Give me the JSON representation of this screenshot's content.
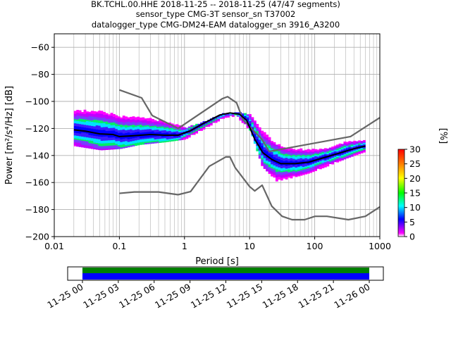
{
  "title": {
    "line1": "BK.TCHL.00.HHE   2018-11-25 -- 2018-11-25  (47/47 segments)",
    "line2": "sensor_type CMG-3T sensor_sn T37002",
    "line3": "datalogger_type CMG-DM24-EAM datalogger_sn 3916_A3200"
  },
  "chart_data": [
    {
      "type": "heatmap",
      "title": "BK.TCHL.00.HHE   2018-11-25 -- 2018-11-25  (47/47 segments)",
      "xlabel": "Period [s]",
      "ylabel": "Power [m²/s⁴/Hz] [dB]",
      "x_scale": "log",
      "xlim": [
        0.01,
        1000
      ],
      "ylim": [
        -200,
        -50
      ],
      "x_ticks": [
        "0.01",
        "0.1",
        "1",
        "10",
        "100",
        "1000"
      ],
      "y_ticks": [
        "−200",
        "−180",
        "−160",
        "−140",
        "−120",
        "−100",
        "−80",
        "−60"
      ],
      "grid": true,
      "colorbar": {
        "label": "[%]",
        "min": 0,
        "max": 30,
        "ticks": [
          "0",
          "5",
          "10",
          "15",
          "20",
          "25",
          "30"
        ],
        "colormap": "pqlx"
      },
      "series": [
        {
          "name": "",
          "style": "model-high",
          "color": "#666666",
          "points": [
            [
              0.1,
              -91.5
            ],
            [
              0.22,
              -97.4
            ],
            [
              0.32,
              -110.5
            ],
            [
              0.8,
              -120
            ],
            [
              3.8,
              -98
            ],
            [
              4.6,
              -96.5
            ],
            [
              6.3,
              -101
            ],
            [
              7.9,
              -113.5
            ],
            [
              15.4,
              -128
            ],
            [
              20,
              -137
            ],
            [
              354.8,
              -126
            ],
            [
              1000,
              -112
            ]
          ]
        },
        {
          "name": "",
          "style": "model-low",
          "color": "#666666",
          "points": [
            [
              0.1,
              -168
            ],
            [
              0.17,
              -167
            ],
            [
              0.4,
              -167
            ],
            [
              0.8,
              -169
            ],
            [
              1.24,
              -166.7
            ],
            [
              2.4,
              -148
            ],
            [
              4.3,
              -141.1
            ],
            [
              5,
              -141.1
            ],
            [
              6,
              -149
            ],
            [
              10,
              -163
            ],
            [
              12,
              -166.2
            ],
            [
              15.6,
              -162
            ],
            [
              21.9,
              -177.5
            ],
            [
              31.6,
              -185
            ],
            [
              45,
              -187.5
            ],
            [
              70,
              -187.5
            ],
            [
              101,
              -185
            ],
            [
              154,
              -185
            ],
            [
              328.9,
              -187.5
            ],
            [
              600,
              -185
            ],
            [
              1000,
              -178
            ]
          ]
        },
        {
          "name": "",
          "style": "mean",
          "color": "#000000",
          "points": [
            [
              0.02,
              -121
            ],
            [
              0.03,
              -122
            ],
            [
              0.05,
              -124
            ],
            [
              0.08,
              -124.5
            ],
            [
              0.1,
              -126
            ],
            [
              0.15,
              -125.5
            ],
            [
              0.3,
              -124.5
            ],
            [
              0.5,
              -125
            ],
            [
              0.8,
              -125
            ],
            [
              1.2,
              -122
            ],
            [
              2,
              -116
            ],
            [
              3.5,
              -110
            ],
            [
              5,
              -108.5
            ],
            [
              7,
              -109.5
            ],
            [
              9,
              -114
            ],
            [
              12,
              -128
            ],
            [
              16,
              -138
            ],
            [
              22,
              -143
            ],
            [
              30,
              -146
            ],
            [
              50,
              -146
            ],
            [
              80,
              -145
            ],
            [
              130,
              -142
            ],
            [
              250,
              -138
            ],
            [
              400,
              -135
            ],
            [
              600,
              -133
            ]
          ]
        }
      ],
      "spread_envelope": {
        "period": [
          0.02,
          0.05,
          0.1,
          0.2,
          0.5,
          1,
          2,
          4,
          6,
          10,
          15,
          25,
          40,
          80,
          150,
          300,
          600
        ],
        "upper_db": [
          -107,
          -107,
          -111,
          -112,
          -115,
          -120,
          -115,
          -109,
          -108,
          -110,
          -122,
          -132,
          -135,
          -136,
          -135,
          -130,
          -129
        ],
        "lower_db": [
          -133,
          -136,
          -135,
          -132,
          -130,
          -128,
          -120,
          -112,
          -111,
          -122,
          -148,
          -159,
          -157,
          -153,
          -148,
          -142,
          -137
        ]
      }
    },
    {
      "type": "bar",
      "name": "data coverage",
      "x_ticks": [
        "11-25 00",
        "11-25 03",
        "11-25 06",
        "11-25 09",
        "11-25 12",
        "11-25 15",
        "11-25 18",
        "11-25 21",
        "11-26 00"
      ],
      "range": [
        "11-25 00",
        "11-26 00"
      ],
      "segments": [
        {
          "band": "top",
          "color": "#008000",
          "start": "11-25 00",
          "end": "11-26 00"
        },
        {
          "band": "bottom",
          "color": "#0000ff",
          "start": "11-25 00",
          "end": "11-26 00"
        }
      ]
    }
  ]
}
